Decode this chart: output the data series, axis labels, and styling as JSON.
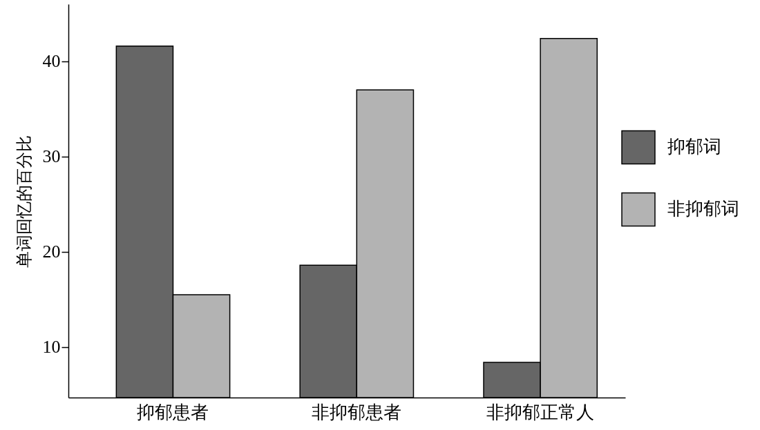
{
  "chart_data": {
    "type": "bar",
    "ylabel": "单词回忆的百分比",
    "categories": [
      "抑郁患者",
      "非抑郁患者",
      "非抑郁正常人"
    ],
    "series": [
      {
        "name": "抑郁词",
        "color": "#666666",
        "values": [
          41.6,
          18.6,
          8.4
        ]
      },
      {
        "name": "非抑郁词",
        "color": "#b3b3b3",
        "values": [
          15.5,
          37.0,
          42.4
        ]
      }
    ],
    "ylim": [
      4.7,
      46
    ],
    "yticks": [
      10,
      20,
      30,
      40
    ],
    "grid": false,
    "legend": "right"
  }
}
